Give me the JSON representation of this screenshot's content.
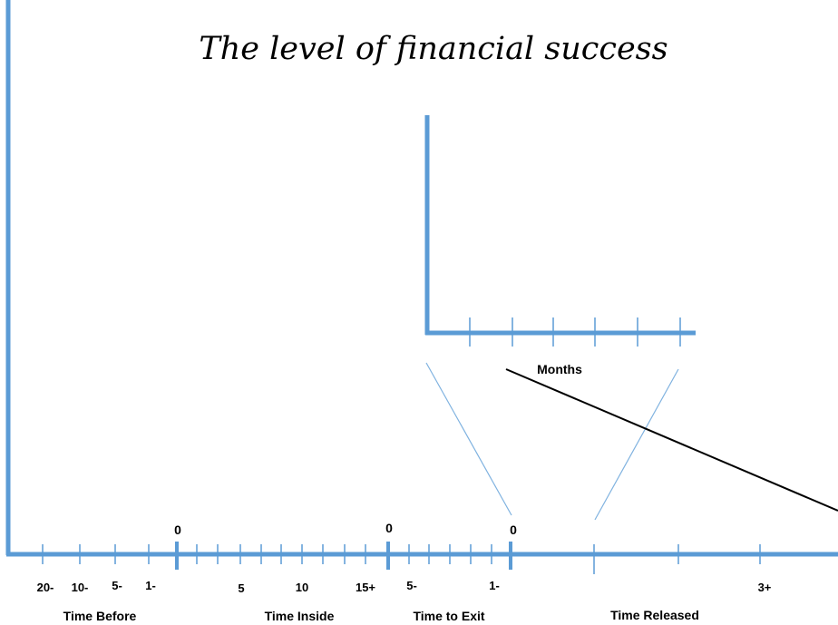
{
  "title": "The level of financial success",
  "inset": {
    "axis_label": "Months"
  },
  "zero_markers": [
    "0",
    "0",
    "0"
  ],
  "tick_labels": [
    "20-",
    "10-",
    "5-",
    "1-",
    "5",
    "10",
    "15+",
    "5-",
    "1-",
    "3+"
  ],
  "segments": [
    "Time Before",
    "Time Inside",
    "Time to Exit",
    "Time Released"
  ],
  "colors": {
    "axis": "#5b9bd5",
    "connector": "#7fb2e0",
    "trend": "#000000",
    "text": "#000000"
  }
}
